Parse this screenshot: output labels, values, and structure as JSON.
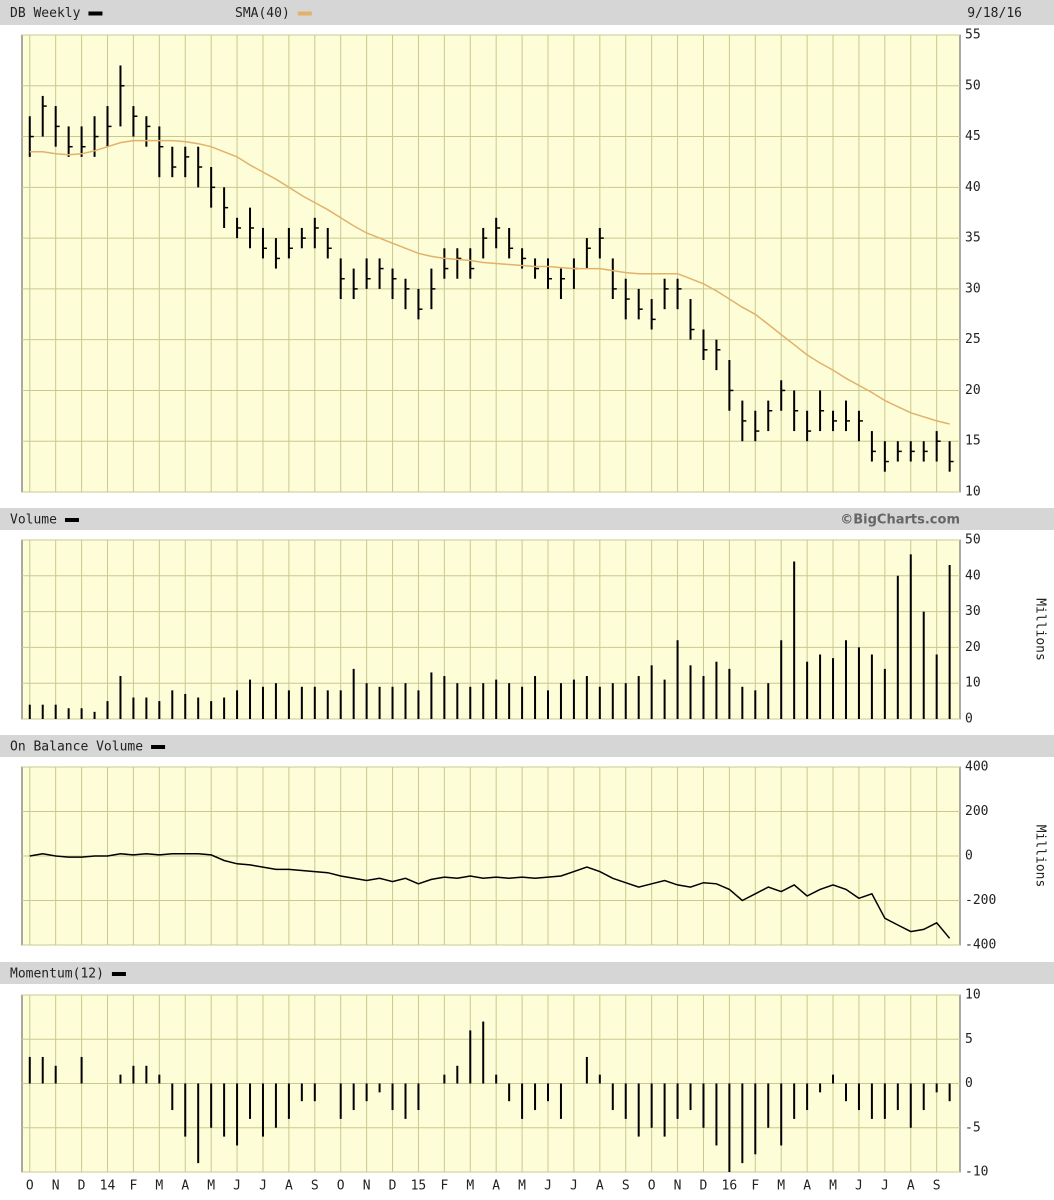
{
  "chart_data": [
    {
      "type": "ohlc",
      "date_label": "9/18/16",
      "xlim": [
        -0.3,
        35.9
      ],
      "ylim": [
        10,
        55
      ],
      "yticks": [
        10,
        15,
        20,
        25,
        30,
        35,
        40,
        45,
        50,
        55
      ],
      "grid": true,
      "x": [
        0,
        0.5,
        1,
        1.5,
        2,
        2.5,
        3,
        3.5,
        4,
        4.5,
        5,
        5.5,
        6,
        6.5,
        7,
        7.5,
        8,
        8.5,
        9,
        9.5,
        10,
        10.5,
        11,
        11.5,
        12,
        12.5,
        13,
        13.5,
        14,
        14.5,
        15,
        15.5,
        16,
        16.5,
        17,
        17.5,
        18,
        18.5,
        19,
        19.5,
        20,
        20.5,
        21,
        21.5,
        22,
        22.5,
        23,
        23.5,
        24,
        24.5,
        25,
        25.5,
        26,
        26.5,
        27,
        27.5,
        28,
        28.5,
        29,
        29.5,
        30,
        30.5,
        31,
        31.5,
        32,
        32.5,
        33,
        33.5,
        34,
        34.5,
        35,
        35.5
      ],
      "series": [
        {
          "name": "DB Weekly",
          "color": "#000000",
          "high": [
            47,
            49,
            48,
            46,
            46,
            47,
            48,
            52,
            48,
            47,
            46,
            44,
            44,
            44,
            42,
            40,
            37,
            38,
            36,
            35,
            36,
            36,
            37,
            36,
            33,
            32,
            33,
            33,
            32,
            31,
            30,
            32,
            34,
            34,
            34,
            36,
            37,
            36,
            34,
            33,
            33,
            32,
            33,
            35,
            36,
            33,
            31,
            30,
            29,
            31,
            31,
            29,
            26,
            25,
            23,
            19,
            18,
            19,
            21,
            20,
            18,
            20,
            18,
            19,
            18,
            16,
            15,
            15,
            15,
            15,
            16,
            15
          ],
          "low": [
            43,
            45,
            44,
            43,
            43,
            43,
            44,
            46,
            45,
            44,
            41,
            41,
            41,
            40,
            38,
            36,
            35,
            34,
            33,
            32,
            33,
            34,
            34,
            33,
            29,
            29,
            30,
            30,
            29,
            28,
            27,
            28,
            31,
            31,
            31,
            33,
            34,
            33,
            32,
            31,
            30,
            29,
            30,
            32,
            33,
            29,
            27,
            27,
            26,
            28,
            28,
            25,
            23,
            22,
            18,
            15,
            15,
            16,
            18,
            16,
            15,
            16,
            16,
            16,
            15,
            13,
            12,
            13,
            13,
            13,
            13,
            12
          ],
          "close": [
            45,
            48,
            46,
            44,
            44,
            45,
            46,
            50,
            47,
            46,
            44,
            42,
            43,
            42,
            40,
            38,
            36,
            36,
            34,
            33,
            34,
            35,
            36,
            34,
            31,
            30,
            31,
            32,
            31,
            30,
            28,
            30,
            32,
            33,
            32,
            35,
            36,
            34,
            33,
            32,
            31,
            31,
            32,
            34,
            35,
            30,
            29,
            28,
            27,
            30,
            30,
            26,
            24,
            24,
            20,
            17,
            16,
            18,
            20,
            18,
            16,
            18,
            17,
            17,
            17,
            14,
            13,
            14,
            14,
            14,
            15,
            13
          ]
        },
        {
          "name": "SMA(40)",
          "color": "#e2b16a",
          "values": [
            43.5,
            43.5,
            43.3,
            43.2,
            43.3,
            43.6,
            44,
            44.4,
            44.6,
            44.6,
            44.6,
            44.6,
            44.5,
            44.3,
            44,
            43.5,
            43,
            42.2,
            41.5,
            40.8,
            40,
            39.2,
            38.5,
            37.8,
            37,
            36.2,
            35.5,
            35,
            34.5,
            34,
            33.5,
            33.2,
            33,
            32.9,
            32.8,
            32.6,
            32.5,
            32.4,
            32.3,
            32.2,
            32.2,
            32.1,
            32,
            32,
            32,
            31.8,
            31.6,
            31.5,
            31.5,
            31.5,
            31.5,
            31,
            30.5,
            29.8,
            29,
            28.2,
            27.5,
            26.5,
            25.5,
            24.5,
            23.5,
            22.7,
            22,
            21.2,
            20.5,
            19.8,
            19,
            18.4,
            17.8,
            17.4,
            17,
            16.7
          ]
        }
      ]
    },
    {
      "type": "bar",
      "credit": "©BigCharts.com",
      "y_label": "Millions",
      "xlim": [
        -0.3,
        35.9
      ],
      "ylim": [
        0,
        50
      ],
      "yticks": [
        0,
        10,
        20,
        30,
        40,
        50
      ],
      "grid": true,
      "x": [
        0,
        0.5,
        1,
        1.5,
        2,
        2.5,
        3,
        3.5,
        4,
        4.5,
        5,
        5.5,
        6,
        6.5,
        7,
        7.5,
        8,
        8.5,
        9,
        9.5,
        10,
        10.5,
        11,
        11.5,
        12,
        12.5,
        13,
        13.5,
        14,
        14.5,
        15,
        15.5,
        16,
        16.5,
        17,
        17.5,
        18,
        18.5,
        19,
        19.5,
        20,
        20.5,
        21,
        21.5,
        22,
        22.5,
        23,
        23.5,
        24,
        24.5,
        25,
        25.5,
        26,
        26.5,
        27,
        27.5,
        28,
        28.5,
        29,
        29.5,
        30,
        30.5,
        31,
        31.5,
        32,
        32.5,
        33,
        33.5,
        34,
        34.5,
        35,
        35.5
      ],
      "series": [
        {
          "name": "Volume",
          "color": "#000000",
          "values": [
            4,
            4,
            4,
            3,
            3,
            2,
            5,
            12,
            6,
            6,
            5,
            8,
            7,
            6,
            5,
            6,
            8,
            11,
            9,
            10,
            8,
            9,
            9,
            8,
            8,
            14,
            10,
            9,
            9,
            10,
            8,
            13,
            12,
            10,
            9,
            10,
            11,
            10,
            9,
            12,
            8,
            10,
            11,
            12,
            9,
            10,
            10,
            12,
            15,
            11,
            22,
            15,
            12,
            16,
            14,
            9,
            8,
            10,
            22,
            44,
            16,
            18,
            17,
            22,
            20,
            18,
            14,
            40,
            46,
            30,
            18,
            43
          ]
        }
      ]
    },
    {
      "type": "line",
      "y_label": "Millions",
      "xlim": [
        -0.3,
        35.9
      ],
      "ylim": [
        -400,
        400
      ],
      "yticks": [
        -400,
        -200,
        0,
        200,
        400
      ],
      "grid": true,
      "x": [
        0,
        0.5,
        1,
        1.5,
        2,
        2.5,
        3,
        3.5,
        4,
        4.5,
        5,
        5.5,
        6,
        6.5,
        7,
        7.5,
        8,
        8.5,
        9,
        9.5,
        10,
        10.5,
        11,
        11.5,
        12,
        12.5,
        13,
        13.5,
        14,
        14.5,
        15,
        15.5,
        16,
        16.5,
        17,
        17.5,
        18,
        18.5,
        19,
        19.5,
        20,
        20.5,
        21,
        21.5,
        22,
        22.5,
        23,
        23.5,
        24,
        24.5,
        25,
        25.5,
        26,
        26.5,
        27,
        27.5,
        28,
        28.5,
        29,
        29.5,
        30,
        30.5,
        31,
        31.5,
        32,
        32.5,
        33,
        33.5,
        34,
        34.5,
        35,
        35.5
      ],
      "series": [
        {
          "name": "On Balance Volume",
          "color": "#000000",
          "values": [
            0,
            10,
            0,
            -5,
            -5,
            0,
            0,
            10,
            5,
            10,
            5,
            10,
            10,
            10,
            5,
            -20,
            -35,
            -40,
            -50,
            -60,
            -60,
            -65,
            -70,
            -75,
            -90,
            -100,
            -110,
            -100,
            -115,
            -100,
            -125,
            -105,
            -95,
            -100,
            -90,
            -100,
            -95,
            -100,
            -95,
            -100,
            -95,
            -90,
            -70,
            -50,
            -70,
            -100,
            -120,
            -140,
            -125,
            -110,
            -130,
            -140,
            -120,
            -125,
            -150,
            -200,
            -170,
            -140,
            -160,
            -130,
            -180,
            -150,
            -130,
            -150,
            -190,
            -170,
            -280,
            -310,
            -340,
            -330,
            -300,
            -370
          ]
        }
      ]
    },
    {
      "type": "bar",
      "xlim": [
        -0.3,
        35.9
      ],
      "ylim": [
        -10,
        10
      ],
      "yticks": [
        -10,
        -5,
        0,
        5,
        10
      ],
      "grid": true,
      "xticks": [
        {
          "value": 0,
          "label": "O"
        },
        {
          "value": 1,
          "label": "N"
        },
        {
          "value": 2,
          "label": "D"
        },
        {
          "value": 3,
          "label": "14"
        },
        {
          "value": 4,
          "label": "F"
        },
        {
          "value": 5,
          "label": "M"
        },
        {
          "value": 6,
          "label": "A"
        },
        {
          "value": 7,
          "label": "M"
        },
        {
          "value": 8,
          "label": "J"
        },
        {
          "value": 9,
          "label": "J"
        },
        {
          "value": 10,
          "label": "A"
        },
        {
          "value": 11,
          "label": "S"
        },
        {
          "value": 12,
          "label": "O"
        },
        {
          "value": 13,
          "label": "N"
        },
        {
          "value": 14,
          "label": "D"
        },
        {
          "value": 15,
          "label": "15"
        },
        {
          "value": 16,
          "label": "F"
        },
        {
          "value": 17,
          "label": "M"
        },
        {
          "value": 18,
          "label": "A"
        },
        {
          "value": 19,
          "label": "M"
        },
        {
          "value": 20,
          "label": "J"
        },
        {
          "value": 21,
          "label": "J"
        },
        {
          "value": 22,
          "label": "A"
        },
        {
          "value": 23,
          "label": "S"
        },
        {
          "value": 24,
          "label": "O"
        },
        {
          "value": 25,
          "label": "N"
        },
        {
          "value": 26,
          "label": "D"
        },
        {
          "value": 27,
          "label": "16"
        },
        {
          "value": 28,
          "label": "F"
        },
        {
          "value": 29,
          "label": "M"
        },
        {
          "value": 30,
          "label": "A"
        },
        {
          "value": 31,
          "label": "M"
        },
        {
          "value": 32,
          "label": "J"
        },
        {
          "value": 33,
          "label": "J"
        },
        {
          "value": 34,
          "label": "A"
        },
        {
          "value": 35,
          "label": "S"
        }
      ],
      "x": [
        0,
        0.5,
        1,
        1.5,
        2,
        2.5,
        3,
        3.5,
        4,
        4.5,
        5,
        5.5,
        6,
        6.5,
        7,
        7.5,
        8,
        8.5,
        9,
        9.5,
        10,
        10.5,
        11,
        11.5,
        12,
        12.5,
        13,
        13.5,
        14,
        14.5,
        15,
        15.5,
        16,
        16.5,
        17,
        17.5,
        18,
        18.5,
        19,
        19.5,
        20,
        20.5,
        21,
        21.5,
        22,
        22.5,
        23,
        23.5,
        24,
        24.5,
        25,
        25.5,
        26,
        26.5,
        27,
        27.5,
        28,
        28.5,
        29,
        29.5,
        30,
        30.5,
        31,
        31.5,
        32,
        32.5,
        33,
        33.5,
        34,
        34.5,
        35,
        35.5
      ],
      "series": [
        {
          "name": "Momentum(12)",
          "color": "#000000",
          "values": [
            3,
            3,
            2,
            0,
            3,
            0,
            0,
            1,
            2,
            2,
            1,
            -3,
            -6,
            -9,
            -5,
            -6,
            -7,
            -4,
            -6,
            -5,
            -4,
            -2,
            -2,
            0,
            -4,
            -3,
            -2,
            -1,
            -3,
            -4,
            -3,
            0,
            1,
            2,
            6,
            7,
            1,
            -2,
            -4,
            -3,
            -2,
            -4,
            0,
            3,
            1,
            -3,
            -4,
            -6,
            -5,
            -6,
            -4,
            -3,
            -5,
            -7,
            -10,
            -9,
            -8,
            -5,
            -7,
            -4,
            -3,
            -1,
            1,
            -2,
            -3,
            -4,
            -4,
            -3,
            -5,
            -3,
            -1,
            -2
          ]
        }
      ]
    }
  ]
}
